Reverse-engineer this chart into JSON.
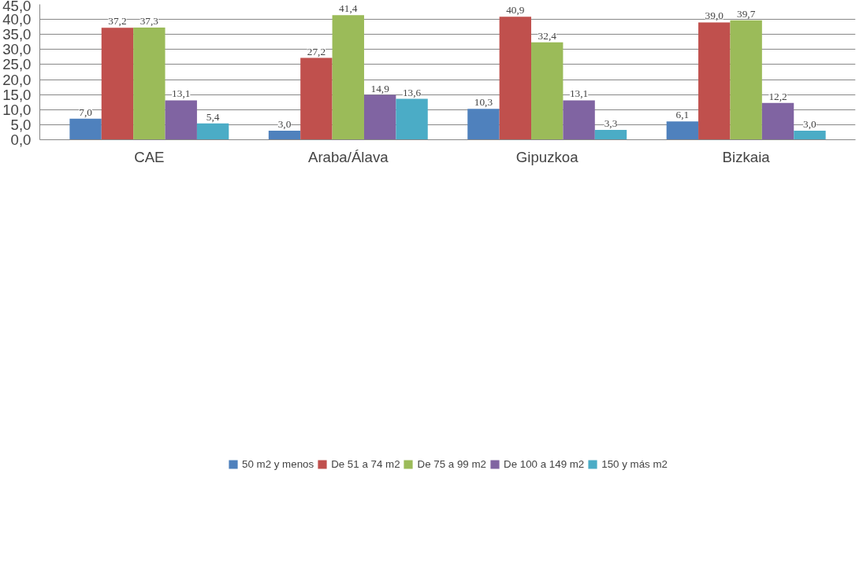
{
  "chart_data": {
    "type": "bar",
    "categories": [
      "CAE",
      "Araba/Álava",
      "Gipuzkoa",
      "Bizkaia"
    ],
    "series": [
      {
        "name": "50 m2 y menos",
        "color": "#4f81bd",
        "values": [
          7.0,
          3.0,
          10.3,
          6.1
        ],
        "value_labels": [
          "7,0",
          "3,0",
          "10,3",
          "6,1"
        ]
      },
      {
        "name": "De 51 a 74 m2",
        "color": "#c0504d",
        "values": [
          37.2,
          27.2,
          40.9,
          39.0
        ],
        "value_labels": [
          "37,2",
          "27,2",
          "40,9",
          "39,0"
        ]
      },
      {
        "name": "De 75 a 99 m2",
        "color": "#9bbb59",
        "values": [
          37.3,
          41.4,
          32.4,
          39.7
        ],
        "value_labels": [
          "37,3",
          "41,4",
          "32,4",
          "39,7"
        ]
      },
      {
        "name": "De 100 a 149 m2",
        "color": "#8064a2",
        "values": [
          13.1,
          14.9,
          13.1,
          12.2
        ],
        "value_labels": [
          "13,1",
          "14,9",
          "13,1",
          "12,2"
        ]
      },
      {
        "name": "150 y más m2",
        "color": "#4bacc6",
        "values": [
          5.4,
          13.6,
          3.3,
          3.0
        ],
        "value_labels": [
          "5,4",
          "13,6",
          "3,3",
          "3,0"
        ]
      }
    ],
    "ylim": [
      0,
      45
    ],
    "yticks": [
      {
        "value": 0,
        "label": "0,0"
      },
      {
        "value": 5,
        "label": "5,0"
      },
      {
        "value": 10,
        "label": "10,0"
      },
      {
        "value": 15,
        "label": "15,0"
      },
      {
        "value": 20,
        "label": "20,0"
      },
      {
        "value": 25,
        "label": "25,0"
      },
      {
        "value": 30,
        "label": "30,0"
      },
      {
        "value": 35,
        "label": "35,0"
      },
      {
        "value": 40,
        "label": "40,0"
      },
      {
        "value": 45,
        "label": "45,0"
      }
    ],
    "grid": "y",
    "legend": "bottom"
  }
}
